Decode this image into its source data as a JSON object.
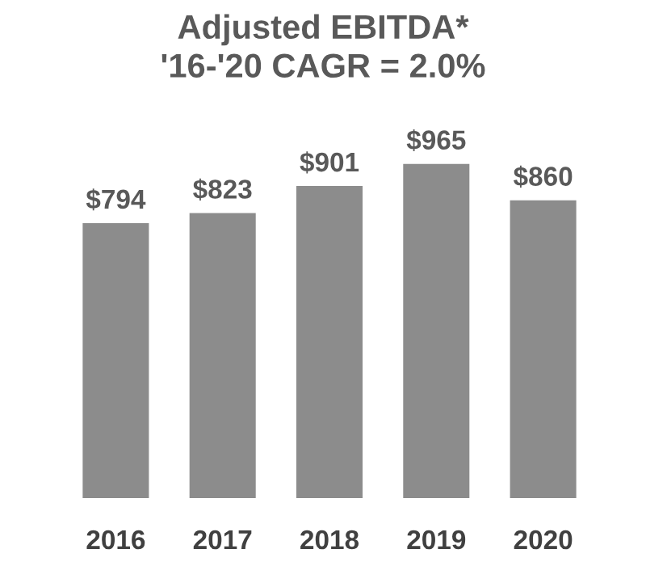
{
  "chart_data": {
    "type": "bar",
    "title": "Adjusted EBITDA*\n'16-'20 CAGR = 2.0%",
    "categories": [
      "2016",
      "2017",
      "2018",
      "2019",
      "2020"
    ],
    "values": [
      794,
      823,
      901,
      965,
      860
    ],
    "value_labels": [
      "$794",
      "$823",
      "$901",
      "$965",
      "$860"
    ],
    "color": "#8c8c8c",
    "grid": false,
    "legend": false
  }
}
